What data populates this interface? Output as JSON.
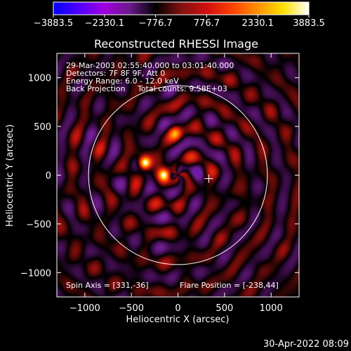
{
  "chart_data": {
    "type": "heatmap",
    "title": "Reconstructed RHESSI Image",
    "xlabel": "Heliocentric X (arcsec)",
    "ylabel": "Heliocentric Y (arcsec)",
    "xlim": [
      -1300,
      1300
    ],
    "ylim": [
      -1250,
      1250
    ],
    "x_ticks": [
      -1000,
      -500,
      0,
      500,
      1000
    ],
    "x_tick_labels": [
      "−1000",
      "−500",
      "0",
      "500",
      "1000"
    ],
    "y_ticks": [
      -1000,
      -500,
      0,
      500,
      1000
    ],
    "y_tick_labels": [
      "−1000",
      "−500",
      "0",
      "500",
      "1000"
    ],
    "colorbar": {
      "range": [
        -3883.5,
        3883.5
      ],
      "ticks": [
        -3883.5,
        -2330.1,
        -776.7,
        776.7,
        2330.1,
        3883.5
      ],
      "tick_labels": [
        "−3883.5",
        "−2330.1",
        "−776.7",
        "776.7",
        "2330.1",
        "3883.5"
      ],
      "colors": [
        "#0000ff",
        "#5000ff",
        "#a000e0",
        "#6a1a8a",
        "#000000",
        "#801010",
        "#d01010",
        "#ff4000",
        "#ff9000",
        "#ffe000",
        "#ffffff"
      ]
    },
    "info_lines": [
      "29-Mar-2003 02:55:40.000 to 03:01:40.000",
      "Detectors: 7F 8F 9F, Att 0",
      "Energy Range: 6.0 - 12.0 keV",
      "Back Projection     Total counts: 9.58E+03"
    ],
    "spin_axis_text": "Spin Axis = [331,-36]",
    "flare_position_text": "Flare Position = [-238,44]",
    "solar_disk": {
      "center": [
        0,
        0
      ],
      "radius_arcsec": 960
    },
    "spin_axis": [
      331,
      -36
    ],
    "sources": [
      {
        "x": -355,
        "y": 125,
        "peak": 3883.5
      },
      {
        "x": -145,
        "y": 5,
        "peak": 3300
      },
      {
        "x": -30,
        "y": 430,
        "peak": 1600
      }
    ],
    "timestamp": "30-Apr-2022 08:09"
  }
}
